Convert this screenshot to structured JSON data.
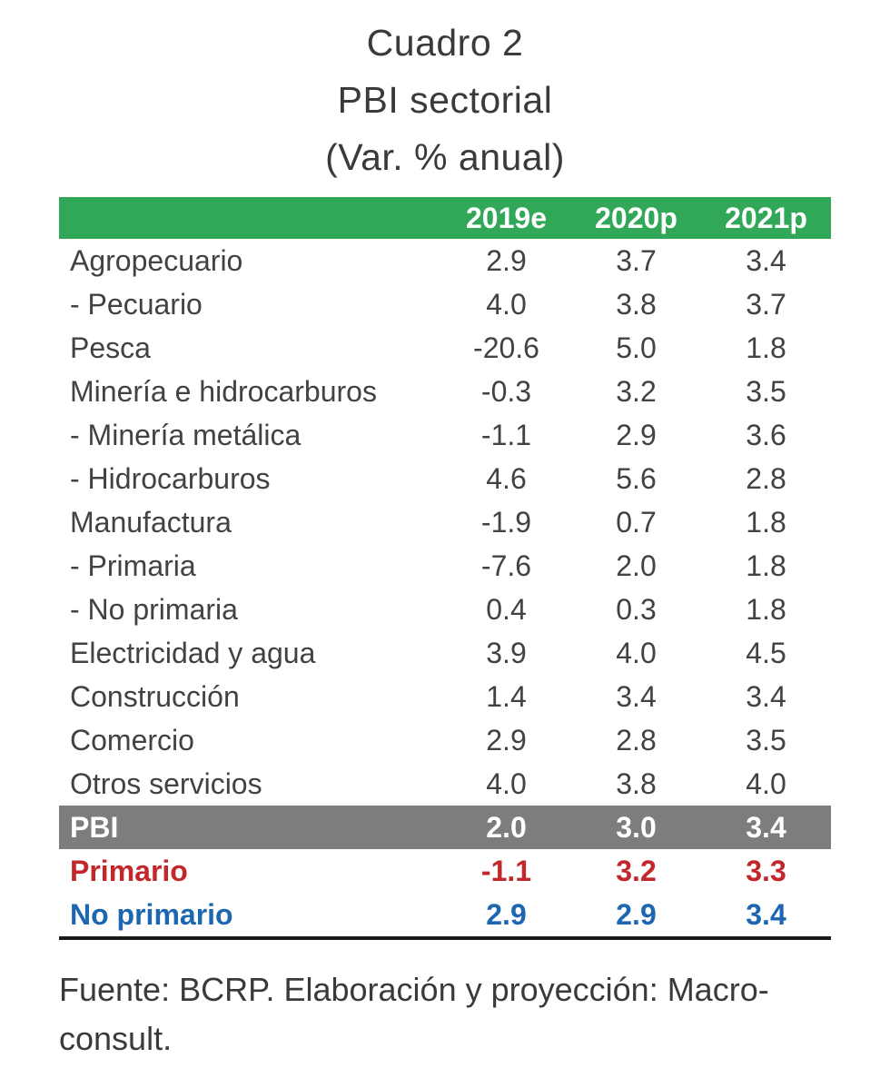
{
  "title": {
    "line1": "Cuadro 2",
    "line2": "PBI sectorial",
    "line3": "(Var. % anual)"
  },
  "table": {
    "columns": [
      "2019e",
      "2020p",
      "2021p"
    ],
    "rows": [
      {
        "label": "Agropecuario",
        "values": [
          "2.9",
          "3.7",
          "3.4"
        ],
        "style": "normal"
      },
      {
        "label": "- Pecuario",
        "values": [
          "4.0",
          "3.8",
          "3.7"
        ],
        "style": "normal"
      },
      {
        "label": "Pesca",
        "values": [
          "-20.6",
          "5.0",
          "1.8"
        ],
        "style": "normal"
      },
      {
        "label": "Minería e hidrocarburos",
        "values": [
          "-0.3",
          "3.2",
          "3.5"
        ],
        "style": "normal"
      },
      {
        "label": "- Minería metálica",
        "values": [
          "-1.1",
          "2.9",
          "3.6"
        ],
        "style": "normal"
      },
      {
        "label": "- Hidrocarburos",
        "values": [
          "4.6",
          "5.6",
          "2.8"
        ],
        "style": "normal"
      },
      {
        "label": "Manufactura",
        "values": [
          "-1.9",
          "0.7",
          "1.8"
        ],
        "style": "normal"
      },
      {
        "label": "- Primaria",
        "values": [
          "-7.6",
          "2.0",
          "1.8"
        ],
        "style": "normal"
      },
      {
        "label": "- No primaria",
        "values": [
          "0.4",
          "0.3",
          "1.8"
        ],
        "style": "normal"
      },
      {
        "label": "Electricidad y agua",
        "values": [
          "3.9",
          "4.0",
          "4.5"
        ],
        "style": "normal"
      },
      {
        "label": "Construcción",
        "values": [
          "1.4",
          "3.4",
          "3.4"
        ],
        "style": "normal"
      },
      {
        "label": "Comercio",
        "values": [
          "2.9",
          "2.8",
          "3.5"
        ],
        "style": "normal"
      },
      {
        "label": "Otros servicios",
        "values": [
          "4.0",
          "3.8",
          "4.0"
        ],
        "style": "normal"
      },
      {
        "label": "PBI",
        "values": [
          "2.0",
          "3.0",
          "3.4"
        ],
        "style": "pbi"
      },
      {
        "label": "Primario",
        "values": [
          "-1.1",
          "3.2",
          "3.3"
        ],
        "style": "primario"
      },
      {
        "label": "No primario",
        "values": [
          "2.9",
          "2.9",
          "3.4"
        ],
        "style": "noprimario"
      }
    ]
  },
  "footer": "Fuente: BCRP. Elaboración y proyección: Macro-consult.",
  "colors": {
    "header_green": "#31a857",
    "pbi_gray": "#7d7d7d",
    "primario_red": "#c2272b",
    "noprimario_blue": "#1c67b0",
    "border_black": "#1a1a1a"
  },
  "chart_data": {
    "type": "table",
    "title": "Cuadro 2 — PBI sectorial (Var. % anual)",
    "columns": [
      "2019e",
      "2020p",
      "2021p"
    ],
    "rows": [
      {
        "label": "Agropecuario",
        "values": [
          2.9,
          3.7,
          3.4
        ]
      },
      {
        "label": "- Pecuario",
        "values": [
          4.0,
          3.8,
          3.7
        ]
      },
      {
        "label": "Pesca",
        "values": [
          -20.6,
          5.0,
          1.8
        ]
      },
      {
        "label": "Minería e hidrocarburos",
        "values": [
          -0.3,
          3.2,
          3.5
        ]
      },
      {
        "label": "- Minería metálica",
        "values": [
          -1.1,
          2.9,
          3.6
        ]
      },
      {
        "label": "- Hidrocarburos",
        "values": [
          4.6,
          5.6,
          2.8
        ]
      },
      {
        "label": "Manufactura",
        "values": [
          -1.9,
          0.7,
          1.8
        ]
      },
      {
        "label": "- Primaria",
        "values": [
          -7.6,
          2.0,
          1.8
        ]
      },
      {
        "label": "- No primaria",
        "values": [
          0.4,
          0.3,
          1.8
        ]
      },
      {
        "label": "Electricidad y agua",
        "values": [
          3.9,
          4.0,
          4.5
        ]
      },
      {
        "label": "Construcción",
        "values": [
          1.4,
          3.4,
          3.4
        ]
      },
      {
        "label": "Comercio",
        "values": [
          2.9,
          2.8,
          3.5
        ]
      },
      {
        "label": "Otros servicios",
        "values": [
          4.0,
          3.8,
          4.0
        ]
      },
      {
        "label": "PBI",
        "values": [
          2.0,
          3.0,
          3.4
        ]
      },
      {
        "label": "Primario",
        "values": [
          -1.1,
          3.2,
          3.3
        ]
      },
      {
        "label": "No primario",
        "values": [
          2.9,
          2.9,
          3.4
        ]
      }
    ],
    "source_note": "Fuente: BCRP. Elaboración y proyección: Macroconsult."
  }
}
